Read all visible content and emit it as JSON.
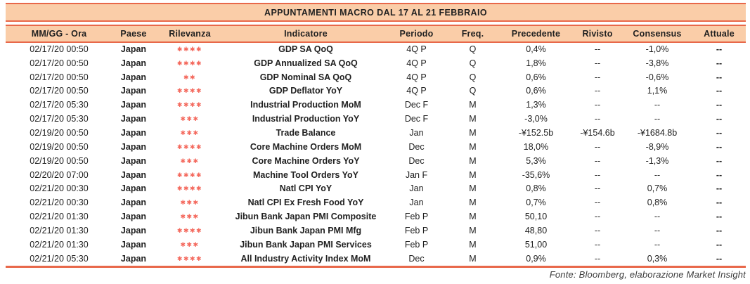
{
  "title": "APPUNTAMENTI MACRO DAL 17 AL 21 FEBBRAIO",
  "footer": "Fonte: Bloomberg, elaborazione Market Insight",
  "colors": {
    "accent": "#E8684A",
    "band_bg": "#FACDA8",
    "stars": "#F4685C",
    "text": "#212121"
  },
  "table": {
    "columns": [
      "MM/GG - Ora",
      "Paese",
      "Rilevanza",
      "Indicatore",
      "Periodo",
      "Freq.",
      "Precedente",
      "Rivisto",
      "Consensus",
      "Attuale"
    ],
    "rows": [
      {
        "date": "02/17/20 00:50",
        "country": "Japan",
        "relevance": 4,
        "indicator": "GDP SA QoQ",
        "period": "4Q P",
        "freq": "Q",
        "previous": "0,4%",
        "revised": "--",
        "consensus": "-1,0%",
        "actual": "--"
      },
      {
        "date": "02/17/20 00:50",
        "country": "Japan",
        "relevance": 4,
        "indicator": "GDP Annualized SA QoQ",
        "period": "4Q P",
        "freq": "Q",
        "previous": "1,8%",
        "revised": "--",
        "consensus": "-3,8%",
        "actual": "--"
      },
      {
        "date": "02/17/20 00:50",
        "country": "Japan",
        "relevance": 2,
        "indicator": "GDP Nominal SA QoQ",
        "period": "4Q P",
        "freq": "Q",
        "previous": "0,6%",
        "revised": "--",
        "consensus": "-0,6%",
        "actual": "--"
      },
      {
        "date": "02/17/20 00:50",
        "country": "Japan",
        "relevance": 4,
        "indicator": "GDP Deflator YoY",
        "period": "4Q P",
        "freq": "Q",
        "previous": "0,6%",
        "revised": "--",
        "consensus": "1,1%",
        "actual": "--"
      },
      {
        "date": "02/17/20 05:30",
        "country": "Japan",
        "relevance": 4,
        "indicator": "Industrial Production MoM",
        "period": "Dec F",
        "freq": "M",
        "previous": "1,3%",
        "revised": "--",
        "consensus": "--",
        "actual": "--"
      },
      {
        "date": "02/17/20 05:30",
        "country": "Japan",
        "relevance": 3,
        "indicator": "Industrial Production YoY",
        "period": "Dec F",
        "freq": "M",
        "previous": "-3,0%",
        "revised": "--",
        "consensus": "--",
        "actual": "--"
      },
      {
        "date": "02/19/20 00:50",
        "country": "Japan",
        "relevance": 3,
        "indicator": "Trade Balance",
        "period": "Jan",
        "freq": "M",
        "previous": "-¥152.5b",
        "revised": "-¥154.6b",
        "consensus": "-¥1684.8b",
        "actual": "--"
      },
      {
        "date": "02/19/20 00:50",
        "country": "Japan",
        "relevance": 4,
        "indicator": "Core Machine Orders MoM",
        "period": "Dec",
        "freq": "M",
        "previous": "18,0%",
        "revised": "--",
        "consensus": "-8,9%",
        "actual": "--"
      },
      {
        "date": "02/19/20 00:50",
        "country": "Japan",
        "relevance": 3,
        "indicator": "Core Machine Orders YoY",
        "period": "Dec",
        "freq": "M",
        "previous": "5,3%",
        "revised": "--",
        "consensus": "-1,3%",
        "actual": "--"
      },
      {
        "date": "02/20/20 07:00",
        "country": "Japan",
        "relevance": 4,
        "indicator": "Machine Tool Orders YoY",
        "period": "Jan F",
        "freq": "M",
        "previous": "-35,6%",
        "revised": "--",
        "consensus": "--",
        "actual": "--"
      },
      {
        "date": "02/21/20 00:30",
        "country": "Japan",
        "relevance": 4,
        "indicator": "Natl CPI YoY",
        "period": "Jan",
        "freq": "M",
        "previous": "0,8%",
        "revised": "--",
        "consensus": "0,7%",
        "actual": "--"
      },
      {
        "date": "02/21/20 00:30",
        "country": "Japan",
        "relevance": 3,
        "indicator": "Natl CPI Ex Fresh Food YoY",
        "period": "Jan",
        "freq": "M",
        "previous": "0,7%",
        "revised": "--",
        "consensus": "0,8%",
        "actual": "--"
      },
      {
        "date": "02/21/20 01:30",
        "country": "Japan",
        "relevance": 3,
        "indicator": "Jibun Bank Japan PMI Composite",
        "period": "Feb P",
        "freq": "M",
        "previous": "50,10",
        "revised": "--",
        "consensus": "--",
        "actual": "--"
      },
      {
        "date": "02/21/20 01:30",
        "country": "Japan",
        "relevance": 4,
        "indicator": "Jibun Bank Japan PMI Mfg",
        "period": "Feb P",
        "freq": "M",
        "previous": "48,80",
        "revised": "--",
        "consensus": "--",
        "actual": "--"
      },
      {
        "date": "02/21/20 01:30",
        "country": "Japan",
        "relevance": 3,
        "indicator": "Jibun Bank Japan PMI Services",
        "period": "Feb P",
        "freq": "M",
        "previous": "51,00",
        "revised": "--",
        "consensus": "--",
        "actual": "--"
      },
      {
        "date": "02/21/20 05:30",
        "country": "Japan",
        "relevance": 4,
        "indicator": "All Industry Activity Index MoM",
        "period": "Dec",
        "freq": "M",
        "previous": "0,9%",
        "revised": "--",
        "consensus": "0,3%",
        "actual": "--"
      }
    ]
  }
}
